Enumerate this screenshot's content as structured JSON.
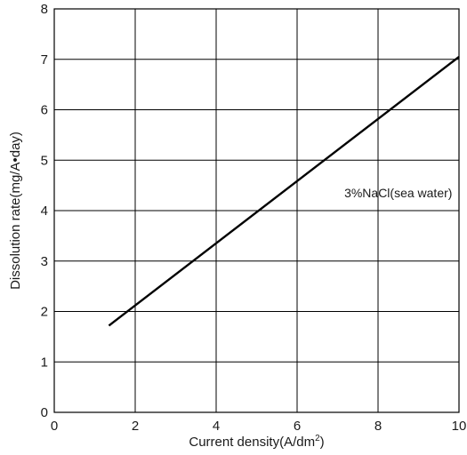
{
  "chart_data": {
    "type": "line",
    "xlabel": "Current density(A/dm",
    "xlabel_sup": "2",
    "xlabel_end": ")",
    "ylabel": "Dissolution rate(mg/A•day)",
    "xlim": [
      0,
      10
    ],
    "ylim": [
      0,
      8
    ],
    "xticks": [
      "0",
      "2",
      "4",
      "6",
      "8",
      "10"
    ],
    "yticks": [
      "0",
      "1",
      "2",
      "3",
      "4",
      "5",
      "6",
      "7",
      "8"
    ],
    "grid": true,
    "series": [
      {
        "name": "3%NaCl(sea water)",
        "x": [
          1.35,
          10
        ],
        "y": [
          1.72,
          7.05
        ]
      }
    ],
    "annotation": "3%NaCl(sea water)",
    "annotation_at": {
      "x": 8.5,
      "y": 4.35
    },
    "line_color": "#000000",
    "grid_color": "#000000"
  }
}
